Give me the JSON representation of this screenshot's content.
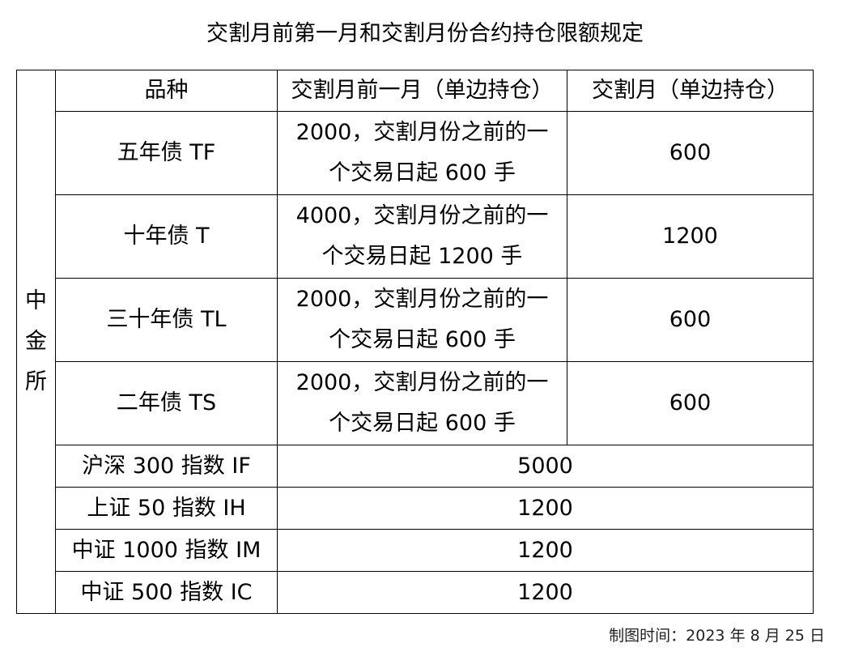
{
  "title": "交割月前第一月和交割月份合约持仓限额规定",
  "table": {
    "exchange": "中金所",
    "headers": {
      "product": "品种",
      "pre_delivery": "交割月前一月（单边持仓）",
      "delivery": "交割月（单边持仓）"
    },
    "bond_rows": [
      {
        "product": "五年债 TF",
        "pre_delivery_line1": "2000，交割月份之前的一",
        "pre_delivery_line2": "个交易日起 600 手",
        "delivery": "600"
      },
      {
        "product": "十年债 T",
        "pre_delivery_line1": "4000，交割月份之前的一",
        "pre_delivery_line2": "个交易日起 1200 手",
        "delivery": "1200"
      },
      {
        "product": "三十年债 TL",
        "pre_delivery_line1": "2000，交割月份之前的一",
        "pre_delivery_line2": "个交易日起 600 手",
        "delivery": "600"
      },
      {
        "product": "二年债 TS",
        "pre_delivery_line1": "2000，交割月份之前的一",
        "pre_delivery_line2": "个交易日起 600 手",
        "delivery": "600"
      }
    ],
    "index_rows": [
      {
        "product": "沪深 300 指数 IF",
        "limit": "5000"
      },
      {
        "product": "上证 50 指数 IH",
        "limit": "1200"
      },
      {
        "product": "中证 1000 指数 IM",
        "limit": "1200"
      },
      {
        "product": "中证 500 指数 IC",
        "limit": "1200"
      }
    ]
  },
  "footer": "制图时间：2023 年 8 月 25 日"
}
